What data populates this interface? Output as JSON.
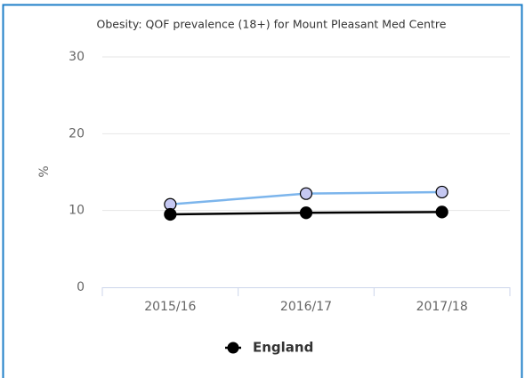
{
  "chart_data": {
    "type": "line",
    "title": "Obesity: QOF prevalence (18+) for Mount Pleasant Med Centre",
    "y_label": "%",
    "categories": [
      "2015/16",
      "2016/17",
      "2017/18"
    ],
    "series": [
      {
        "color": "#7cb5ec",
        "marker_fill": "#c5c8f2",
        "values": [
          10.8,
          12.2,
          12.4
        ]
      },
      {
        "name": "England",
        "color": "#000000",
        "marker_fill": "#000000",
        "values": [
          9.5,
          9.7,
          9.8
        ]
      }
    ],
    "ylim": [
      0,
      30
    ],
    "yticks": [
      0,
      10,
      20,
      30
    ],
    "grid": true
  }
}
